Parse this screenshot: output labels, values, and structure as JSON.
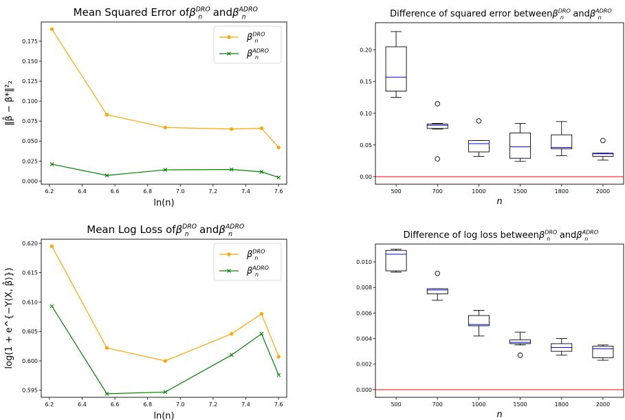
{
  "colors": {
    "dro": "#ffa500",
    "adro": "#008000",
    "box": "#000000",
    "median": "#0000ff",
    "zero_line": "#ff0000"
  },
  "chart_data": [
    {
      "id": "mse",
      "type": "line",
      "title": {
        "pre": "Mean Squared Error of ",
        "mid": " and "
      },
      "xlabel": "ln(n)",
      "ylabel": "‖β̂ − β*‖²₂",
      "xlim": [
        6.15,
        7.65
      ],
      "ylim": [
        -0.004,
        0.199
      ],
      "xticks": [
        6.2,
        6.4,
        6.6,
        6.8,
        7.0,
        7.2,
        7.4,
        7.6
      ],
      "xtick_labels": [
        "6.2",
        "6.4",
        "6.6",
        "6.8",
        "7.0",
        "7.2",
        "7.4",
        "7.6"
      ],
      "yticks": [
        0.0,
        0.025,
        0.05,
        0.075,
        0.1,
        0.125,
        0.15,
        0.175
      ],
      "ytick_labels": [
        "0.000",
        "0.025",
        "0.050",
        "0.075",
        "0.100",
        "0.125",
        "0.150",
        "0.175"
      ],
      "legend_position": "top-right",
      "x": [
        6.215,
        6.551,
        6.908,
        7.313,
        7.496,
        7.601
      ],
      "series": [
        {
          "key": "dro",
          "marker": "circle",
          "values": [
            0.19,
            0.083,
            0.067,
            0.065,
            0.066,
            0.042
          ]
        },
        {
          "key": "adro",
          "marker": "x",
          "values": [
            0.021,
            0.007,
            0.014,
            0.0145,
            0.0115,
            0.0045
          ]
        }
      ]
    },
    {
      "id": "mse-diff",
      "type": "box",
      "title": {
        "pre": "Difference of squared error between ",
        "mid": " and "
      },
      "xlabel": "n",
      "categories": [
        "500",
        "700",
        "1000",
        "1500",
        "1800",
        "2000"
      ],
      "ylim": [
        -0.012,
        0.243
      ],
      "yticks": [
        0.0,
        0.05,
        0.1,
        0.15,
        0.2
      ],
      "ytick_labels": [
        "0.00",
        "0.05",
        "0.10",
        "0.15",
        "0.20"
      ],
      "reference_line": 0.0,
      "boxes": [
        {
          "min": 0.125,
          "q1": 0.135,
          "median": 0.157,
          "q3": 0.205,
          "max": 0.229,
          "fliers": []
        },
        {
          "min": 0.075,
          "q1": 0.076,
          "median": 0.081,
          "q3": 0.083,
          "max": 0.084,
          "fliers": [
            0.115,
            0.028
          ]
        },
        {
          "min": 0.032,
          "q1": 0.039,
          "median": 0.052,
          "q3": 0.057,
          "max": 0.057,
          "fliers": [
            0.088
          ]
        },
        {
          "min": 0.024,
          "q1": 0.029,
          "median": 0.047,
          "q3": 0.069,
          "max": 0.084,
          "fliers": []
        },
        {
          "min": 0.033,
          "q1": 0.044,
          "median": 0.046,
          "q3": 0.066,
          "max": 0.087,
          "fliers": []
        },
        {
          "min": 0.026,
          "q1": 0.032,
          "median": 0.036,
          "q3": 0.037,
          "max": 0.037,
          "fliers": [
            0.057
          ]
        }
      ]
    },
    {
      "id": "logloss",
      "type": "line",
      "title": {
        "pre": "Mean Log Loss of ",
        "mid": " and "
      },
      "xlabel": "ln(n)",
      "ylabel": "log(1 + e^{−Y⟨X, β̂⟩})",
      "xlim": [
        6.15,
        7.65
      ],
      "ylim": [
        0.5938,
        0.6207
      ],
      "xticks": [
        6.2,
        6.4,
        6.6,
        6.8,
        7.0,
        7.2,
        7.4,
        7.6
      ],
      "xtick_labels": [
        "6.2",
        "6.4",
        "6.6",
        "6.8",
        "7.0",
        "7.2",
        "7.4",
        "7.6"
      ],
      "yticks": [
        0.595,
        0.6,
        0.605,
        0.61,
        0.615,
        0.62
      ],
      "ytick_labels": [
        "0.595",
        "0.600",
        "0.605",
        "0.610",
        "0.615",
        "0.620"
      ],
      "legend_position": "top-right",
      "x": [
        6.215,
        6.551,
        6.908,
        7.313,
        7.496,
        7.601
      ],
      "series": [
        {
          "key": "dro",
          "marker": "circle",
          "values": [
            0.6195,
            0.6022,
            0.6,
            0.6046,
            0.608,
            0.6007
          ]
        },
        {
          "key": "adro",
          "marker": "x",
          "values": [
            0.6093,
            0.5944,
            0.5947,
            0.601,
            0.6046,
            0.5976
          ]
        }
      ]
    },
    {
      "id": "logloss-diff",
      "type": "box",
      "title": {
        "pre": "Difference of log loss between ",
        "mid": " and "
      },
      "xlabel": "n",
      "categories": [
        "500",
        "700",
        "1000",
        "1500",
        "1800",
        "2000"
      ],
      "ylim": [
        -0.0006,
        0.0114
      ],
      "yticks": [
        0.0,
        0.002,
        0.004,
        0.006,
        0.008,
        0.01
      ],
      "ytick_labels": [
        "0.000",
        "0.002",
        "0.004",
        "0.006",
        "0.008",
        "0.010"
      ],
      "reference_line": 0.0,
      "boxes": [
        {
          "min": 0.0092,
          "q1": 0.0093,
          "median": 0.0106,
          "q3": 0.0109,
          "max": 0.011,
          "fliers": []
        },
        {
          "min": 0.007,
          "q1": 0.0075,
          "median": 0.0078,
          "q3": 0.0079,
          "max": 0.0079,
          "fliers": [
            0.0091
          ]
        },
        {
          "min": 0.0042,
          "q1": 0.005,
          "median": 0.0051,
          "q3": 0.0058,
          "max": 0.0062,
          "fliers": []
        },
        {
          "min": 0.0035,
          "q1": 0.0036,
          "median": 0.0037,
          "q3": 0.0039,
          "max": 0.0045,
          "fliers": [
            0.0027
          ]
        },
        {
          "min": 0.0027,
          "q1": 0.003,
          "median": 0.0033,
          "q3": 0.0036,
          "max": 0.004,
          "fliers": []
        },
        {
          "min": 0.0023,
          "q1": 0.0025,
          "median": 0.0032,
          "q3": 0.0034,
          "max": 0.0035,
          "fliers": []
        }
      ]
    }
  ]
}
